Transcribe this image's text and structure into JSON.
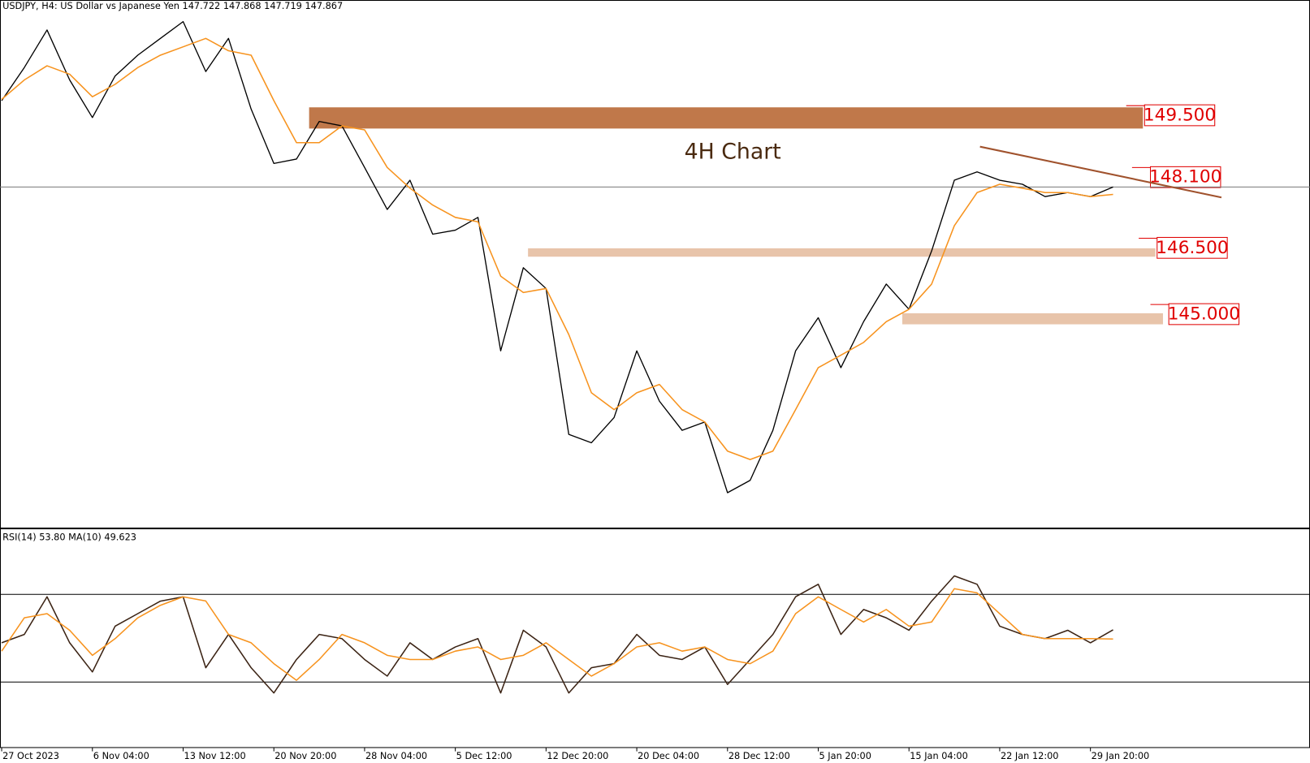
{
  "chart_data": [
    {
      "type": "line",
      "title": "USDJPY, H4:  US Dollar vs Japanese Yen  147.722 147.868 147.719 147.867",
      "annotation": "4H Chart",
      "categories": [
        "27 Oct 2023",
        null,
        null,
        null,
        "6 Nov 04:00",
        null,
        null,
        null,
        "13 Nov 12:00",
        null,
        null,
        null,
        "20 Nov 20:00",
        null,
        null,
        null,
        "28 Nov 04:00",
        null,
        null,
        null,
        "5 Dec 12:00",
        null,
        null,
        null,
        "12 Dec 20:00",
        null,
        null,
        null,
        "20 Dec 04:00",
        null,
        null,
        null,
        "28 Dec 12:00",
        null,
        null,
        null,
        "5 Jan 20:00",
        null,
        null,
        null,
        "15 Jan 04:00",
        null,
        null,
        null,
        "22 Jan 12:00",
        null,
        null,
        null,
        "29 Jan 20:00",
        null
      ],
      "ylim": [
        140.16,
        152.08
      ],
      "series": [
        {
          "color": "#000000",
          "values": [
            149.82,
            150.57,
            151.42,
            150.29,
            149.44,
            150.38,
            150.85,
            151.23,
            151.61,
            150.48,
            151.23,
            149.63,
            148.4,
            148.5,
            149.35,
            149.25,
            148.31,
            147.36,
            148.02,
            146.8,
            146.89,
            147.18,
            144.16,
            146.04,
            145.57,
            142.27,
            142.08,
            142.65,
            144.16,
            143.02,
            142.36,
            142.55,
            140.95,
            141.23,
            142.36,
            144.16,
            144.91,
            143.78,
            144.82,
            145.67,
            145.1,
            146.42,
            148.02,
            148.21,
            148.02,
            147.93,
            147.65,
            147.74,
            147.65,
            147.867
          ]
        },
        {
          "color": "#f7931e",
          "values": [
            149.85,
            150.29,
            150.61,
            150.42,
            149.91,
            150.19,
            150.57,
            150.85,
            151.04,
            151.23,
            150.95,
            150.85,
            149.82,
            148.87,
            148.87,
            149.25,
            149.16,
            148.31,
            147.84,
            147.46,
            147.18,
            147.08,
            145.85,
            145.48,
            145.57,
            144.53,
            143.21,
            142.83,
            143.21,
            143.4,
            142.83,
            142.55,
            141.89,
            141.7,
            141.89,
            142.83,
            143.78,
            144.06,
            144.35,
            144.82,
            145.1,
            145.67,
            146.99,
            147.74,
            147.93,
            147.84,
            147.74,
            147.74,
            147.65,
            147.7
          ]
        }
      ],
      "current_price": 147.867,
      "levels": [
        {
          "label": "149.500",
          "value": 149.5,
          "zone": [
            149.19,
            149.67
          ],
          "color": "#c0784a"
        },
        {
          "label": "148.100",
          "value": 148.1
        },
        {
          "label": "146.500",
          "value": 146.5,
          "zone": [
            146.29,
            146.48
          ],
          "color": "#e8c4aa"
        },
        {
          "label": "145.000",
          "value": 145.0,
          "zone": [
            144.76,
            145.01
          ],
          "color": "#e8c4aa"
        }
      ],
      "trendline": [
        148.78,
        147.63
      ],
      "trendline_color": "#a0522d"
    },
    {
      "type": "line",
      "title": "RSI(14) 53.80 MA(10) 49.623",
      "ylim": [
        0,
        100
      ],
      "levels": [
        30,
        70
      ],
      "series": [
        {
          "color": "#3b2314",
          "values": [
            47.9,
            51.7,
            68.9,
            47.9,
            34.6,
            55.5,
            61.2,
            66.9,
            68.9,
            36.5,
            51.7,
            36.5,
            25.0,
            40.3,
            51.7,
            49.8,
            40.3,
            32.7,
            47.9,
            40.3,
            46.0,
            49.8,
            25.0,
            53.6,
            46.0,
            25.0,
            36.5,
            38.4,
            51.7,
            42.2,
            40.3,
            46.0,
            28.9,
            40.3,
            51.7,
            68.9,
            74.6,
            51.7,
            63.1,
            59.3,
            53.6,
            66.9,
            78.4,
            74.6,
            55.5,
            51.7,
            49.8,
            53.6,
            47.9,
            53.8
          ]
        },
        {
          "color": "#f7931e",
          "values": [
            44.1,
            59.3,
            61.2,
            53.6,
            42.2,
            49.8,
            59.3,
            65.0,
            68.9,
            67.0,
            51.7,
            47.9,
            38.4,
            30.8,
            40.3,
            51.7,
            47.9,
            42.2,
            40.3,
            40.3,
            44.1,
            46.0,
            40.3,
            42.2,
            47.9,
            40.3,
            32.7,
            38.4,
            46.0,
            47.9,
            44.1,
            46.0,
            40.3,
            38.4,
            44.1,
            61.2,
            68.9,
            63.1,
            57.4,
            63.1,
            55.5,
            57.4,
            72.6,
            70.7,
            61.2,
            51.7,
            49.8,
            49.8,
            49.8,
            49.623
          ]
        }
      ]
    }
  ]
}
